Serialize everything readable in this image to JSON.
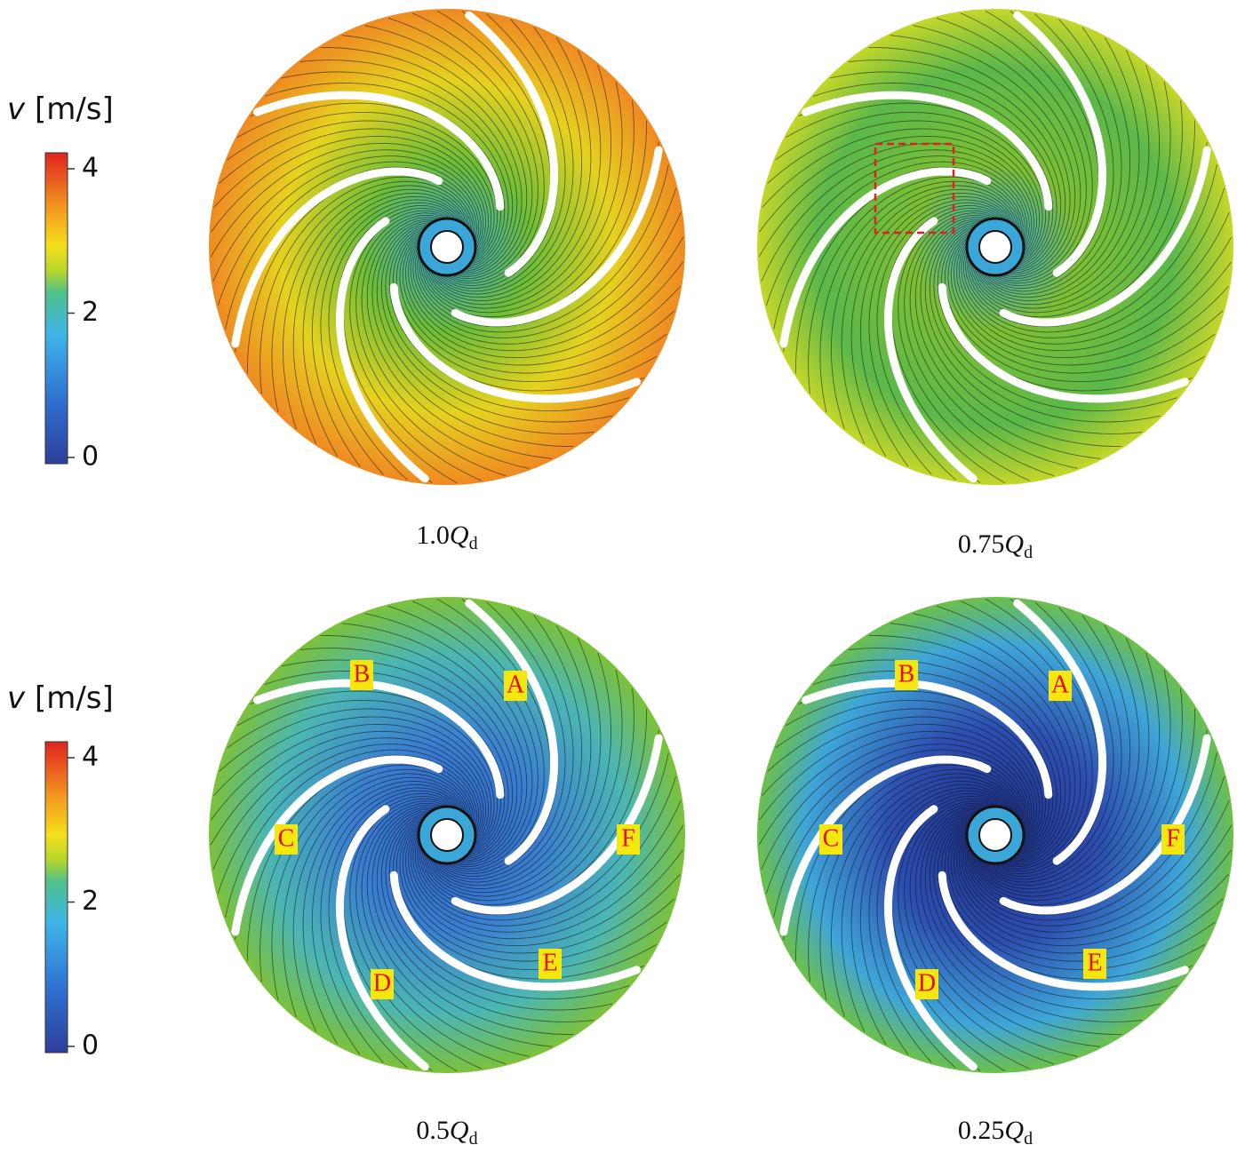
{
  "colorbars": [
    {
      "variable": "v",
      "unit": "[m/s]",
      "ticks": [
        4,
        2,
        0
      ]
    },
    {
      "variable": "v",
      "unit": "[m/s]",
      "ticks": [
        4,
        2,
        0
      ]
    }
  ],
  "panels": [
    {
      "caption": {
        "number": "1.0",
        "symbol": "Q",
        "subscript": "d"
      },
      "labels": []
    },
    {
      "caption": {
        "number": "0.75",
        "symbol": "Q",
        "subscript": "d"
      },
      "labels": []
    },
    {
      "caption": {
        "number": "0.5",
        "symbol": "Q",
        "subscript": "d"
      },
      "labels": [
        "B",
        "A",
        "C",
        "F",
        "D",
        "E"
      ]
    },
    {
      "caption": {
        "number": "0.25",
        "symbol": "Q",
        "subscript": "d"
      },
      "labels": [
        "B",
        "A",
        "C",
        "F",
        "D",
        "E"
      ]
    }
  ]
}
